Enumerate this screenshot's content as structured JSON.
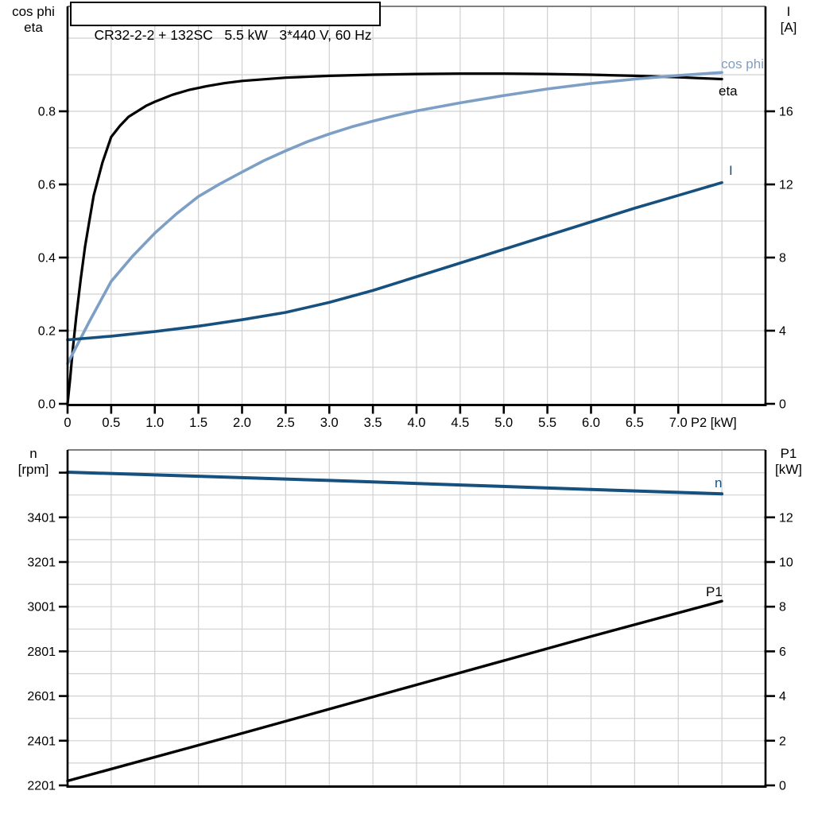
{
  "title_box": {
    "text": "CR32-2-2 + 132SC   5.5 kW   3*440 V, 60 Hz"
  },
  "axis_headers": {
    "top_left": [
      "cos phi",
      "eta"
    ],
    "top_right": [
      "I",
      "[A]"
    ],
    "bottom_left": [
      "n",
      "[rpm]"
    ],
    "bottom_right": [
      "P1",
      "[kW]"
    ]
  },
  "colors": {
    "eta": "#000000",
    "cos_phi": "#7d9fc5",
    "current": "#16507e",
    "speed": "#16507e",
    "p1": "#000000",
    "grid": "#d0d0d0",
    "frame_top": "#7f7f7f",
    "axis": "#000000"
  },
  "chart_data": [
    {
      "type": "line",
      "title": "CR32-2-2 + 132SC   5.5 kW   3*440 V, 60 Hz",
      "x_axis": {
        "label": "P2 [kW]",
        "range": [
          0,
          8
        ],
        "grid_step": 0.5,
        "ticks": [
          0,
          0.5,
          1.0,
          1.5,
          2.0,
          2.5,
          3.0,
          3.5,
          4.0,
          4.5,
          5.0,
          5.5,
          6.0,
          6.5,
          7.0
        ],
        "tick_labels": [
          "0",
          "0.5",
          "1.0",
          "1.5",
          "2.0",
          "2.5",
          "3.0",
          "3.5",
          "4.0",
          "4.5",
          "5.0",
          "5.5",
          "6.0",
          "6.5",
          "7.0"
        ]
      },
      "left_axis": {
        "name": "cos phi / eta",
        "range": [
          0,
          1.09
        ],
        "grid_step": 0.1,
        "ticks": [
          0,
          0.2,
          0.4,
          0.6,
          0.8
        ],
        "tick_labels": [
          "0.0",
          "0.2",
          "0.4",
          "0.6",
          "0.8"
        ]
      },
      "right_axis": {
        "name": "I [A]",
        "range": [
          0,
          21.7
        ],
        "ticks": [
          0,
          4,
          8,
          12,
          16
        ],
        "tick_labels": [
          "0",
          "4",
          "8",
          "12",
          "16"
        ]
      },
      "legend_position": "end-of-curve",
      "grid": true,
      "series": [
        {
          "name": "eta",
          "label": "eta",
          "axis": "left",
          "color": "#000000",
          "width": 3.2,
          "points": [
            [
              0,
              0
            ],
            [
              0.03,
              0.07
            ],
            [
              0.06,
              0.15
            ],
            [
              0.1,
              0.24
            ],
            [
              0.15,
              0.34
            ],
            [
              0.2,
              0.43
            ],
            [
              0.25,
              0.5
            ],
            [
              0.3,
              0.57
            ],
            [
              0.4,
              0.66
            ],
            [
              0.5,
              0.73
            ],
            [
              0.6,
              0.76
            ],
            [
              0.7,
              0.785
            ],
            [
              0.8,
              0.8
            ],
            [
              0.9,
              0.815
            ],
            [
              1.0,
              0.826
            ],
            [
              1.2,
              0.845
            ],
            [
              1.4,
              0.859
            ],
            [
              1.6,
              0.869
            ],
            [
              1.8,
              0.877
            ],
            [
              2.0,
              0.883
            ],
            [
              2.5,
              0.892
            ],
            [
              3.0,
              0.897
            ],
            [
              3.5,
              0.9
            ],
            [
              4.0,
              0.902
            ],
            [
              4.5,
              0.903
            ],
            [
              5.0,
              0.903
            ],
            [
              5.5,
              0.902
            ],
            [
              6.0,
              0.9
            ],
            [
              6.5,
              0.897
            ],
            [
              7.0,
              0.893
            ],
            [
              7.5,
              0.888
            ]
          ]
        },
        {
          "name": "cos phi",
          "label": "cos phi",
          "axis": "left",
          "color": "#7d9fc5",
          "width": 3.6,
          "points": [
            [
              0,
              0.11
            ],
            [
              0.25,
              0.225
            ],
            [
              0.5,
              0.335
            ],
            [
              0.75,
              0.405
            ],
            [
              1.0,
              0.467
            ],
            [
              1.25,
              0.52
            ],
            [
              1.5,
              0.567
            ],
            [
              1.75,
              0.602
            ],
            [
              2.0,
              0.634
            ],
            [
              2.25,
              0.665
            ],
            [
              2.5,
              0.692
            ],
            [
              2.75,
              0.717
            ],
            [
              3.0,
              0.738
            ],
            [
              3.25,
              0.757
            ],
            [
              3.5,
              0.773
            ],
            [
              3.75,
              0.788
            ],
            [
              4.0,
              0.801
            ],
            [
              4.5,
              0.823
            ],
            [
              5.0,
              0.843
            ],
            [
              5.5,
              0.861
            ],
            [
              6.0,
              0.876
            ],
            [
              6.5,
              0.888
            ],
            [
              7.0,
              0.898
            ],
            [
              7.5,
              0.906
            ]
          ]
        },
        {
          "name": "I",
          "label": "I",
          "axis": "right",
          "color": "#16507e",
          "width": 3.6,
          "points": [
            [
              0,
              3.5
            ],
            [
              0.5,
              3.7
            ],
            [
              1.0,
              3.95
            ],
            [
              1.5,
              4.25
            ],
            [
              2.0,
              4.6
            ],
            [
              2.5,
              5.0
            ],
            [
              3.0,
              5.55
            ],
            [
              3.5,
              6.2
            ],
            [
              4.0,
              6.95
            ],
            [
              4.5,
              7.7
            ],
            [
              5.0,
              8.45
            ],
            [
              5.5,
              9.2
            ],
            [
              6.0,
              9.95
            ],
            [
              6.5,
              10.7
            ],
            [
              7.0,
              11.4
            ],
            [
              7.5,
              12.1
            ]
          ]
        }
      ]
    },
    {
      "type": "line",
      "x_axis": {
        "label": "",
        "range": [
          0,
          8
        ],
        "grid_step": 0.5,
        "ticks": [],
        "tick_labels": []
      },
      "left_axis": {
        "name": "n [rpm]",
        "range": [
          2201,
          3700
        ],
        "grid_step": 100,
        "ticks": [
          2201,
          2401,
          2601,
          2801,
          3001,
          3201,
          3401
        ],
        "tick_labels": [
          "2201",
          "2401",
          "2601",
          "2801",
          "3001",
          "3201",
          "3401"
        ],
        "unlabeled_ticks": [
          3601
        ]
      },
      "right_axis": {
        "name": "P1 [kW]",
        "range": [
          0,
          15
        ],
        "ticks": [
          0,
          2,
          4,
          6,
          8,
          10,
          12
        ],
        "tick_labels": [
          "0",
          "2",
          "4",
          "6",
          "8",
          "10",
          "12"
        ]
      },
      "legend_position": "end-of-curve",
      "grid": true,
      "series": [
        {
          "name": "n",
          "label": "n",
          "axis": "left",
          "color": "#16507e",
          "width": 4,
          "points": [
            [
              0,
              3603
            ],
            [
              1.5,
              3585
            ],
            [
              3.0,
              3566
            ],
            [
              4.5,
              3546
            ],
            [
              6.0,
              3526
            ],
            [
              7.5,
              3506
            ]
          ]
        },
        {
          "name": "P1",
          "label": "P1",
          "axis": "right",
          "color": "#000000",
          "width": 3.4,
          "points": [
            [
              0,
              0.2
            ],
            [
              2.0,
              2.33
            ],
            [
              4.0,
              4.5
            ],
            [
              6.0,
              6.67
            ],
            [
              7.5,
              8.25
            ]
          ]
        }
      ]
    }
  ]
}
